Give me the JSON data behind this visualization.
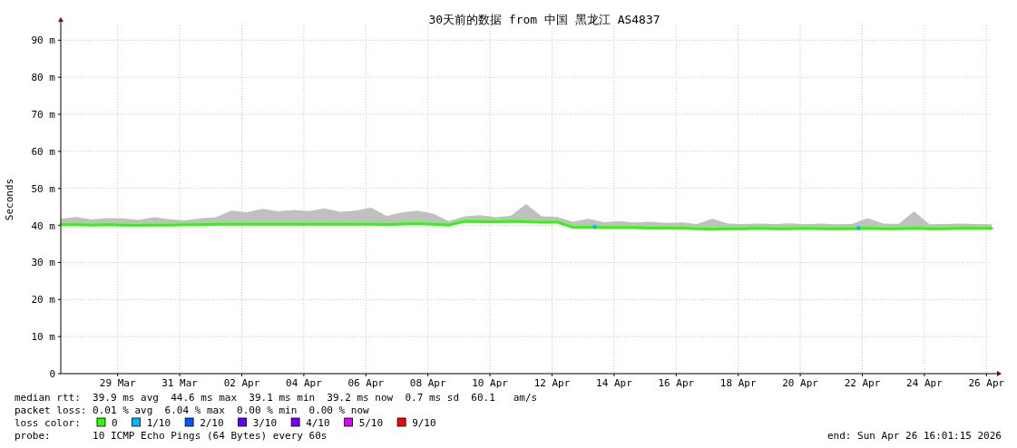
{
  "chart_data": {
    "type": "line",
    "title": "30天前的数据 from 中国 黑龙江 AS4837",
    "ylabel": "Seconds",
    "x": [
      "2026-03-27T16:00",
      "2026-03-28T04:00",
      "2026-03-28T16:00",
      "2026-03-29T04:00",
      "2026-03-29T16:00",
      "2026-03-30T04:00",
      "2026-03-30T16:00",
      "2026-03-31T04:00",
      "2026-03-31T16:00",
      "2026-04-01T04:00",
      "2026-04-01T16:00",
      "2026-04-02T04:00",
      "2026-04-02T16:00",
      "2026-04-03T04:00",
      "2026-04-03T16:00",
      "2026-04-04T04:00",
      "2026-04-04T16:00",
      "2026-04-05T04:00",
      "2026-04-05T16:00",
      "2026-04-06T04:00",
      "2026-04-06T16:00",
      "2026-04-07T04:00",
      "2026-04-07T16:00",
      "2026-04-08T04:00",
      "2026-04-08T16:00",
      "2026-04-09T04:00",
      "2026-04-09T16:00",
      "2026-04-10T04:00",
      "2026-04-10T16:00",
      "2026-04-11T04:00",
      "2026-04-11T16:00",
      "2026-04-12T04:00",
      "2026-04-12T16:00",
      "2026-04-13T04:00",
      "2026-04-13T16:00",
      "2026-04-14T04:00",
      "2026-04-14T16:00",
      "2026-04-15T04:00",
      "2026-04-15T16:00",
      "2026-04-16T04:00",
      "2026-04-16T16:00",
      "2026-04-17T04:00",
      "2026-04-17T16:00",
      "2026-04-18T04:00",
      "2026-04-18T16:00",
      "2026-04-19T04:00",
      "2026-04-19T16:00",
      "2026-04-20T04:00",
      "2026-04-20T16:00",
      "2026-04-21T04:00",
      "2026-04-21T16:00",
      "2026-04-22T04:00",
      "2026-04-22T16:00",
      "2026-04-23T04:00",
      "2026-04-23T16:00",
      "2026-04-24T04:00",
      "2026-04-24T16:00",
      "2026-04-25T04:00",
      "2026-04-25T16:00",
      "2026-04-26T04:00",
      "2026-04-26T16:00"
    ],
    "series": [
      {
        "name": "0",
        "color": "#26ff00",
        "marker": "none",
        "values": [
          40.2,
          40.2,
          40.1,
          40.2,
          40.1,
          40.0,
          40.1,
          40.1,
          40.2,
          40.2,
          40.3,
          40.3,
          40.3,
          40.3,
          40.3,
          40.3,
          40.3,
          40.3,
          40.3,
          40.3,
          40.3,
          40.2,
          40.4,
          40.5,
          40.3,
          40.1,
          41.1,
          41.0,
          41.0,
          41.1,
          41.0,
          40.9,
          40.9,
          39.5,
          39.5,
          39.4,
          39.4,
          39.4,
          39.3,
          39.3,
          39.3,
          39.1,
          39.0,
          39.1,
          39.1,
          39.2,
          39.1,
          39.1,
          39.2,
          39.1,
          39.1,
          39.1,
          39.2,
          39.1,
          39.1,
          39.2,
          39.1,
          39.1,
          39.2,
          39.2,
          39.2
        ],
        "lower": [
          39.9,
          39.9,
          39.8,
          39.9,
          39.8,
          39.7,
          39.8,
          39.8,
          39.9,
          39.9,
          40.0,
          40.0,
          40.0,
          40.0,
          40.0,
          40.0,
          40.0,
          40.0,
          40.0,
          40.0,
          40.0,
          39.9,
          40.1,
          40.2,
          40.0,
          39.8,
          40.8,
          40.7,
          40.7,
          40.8,
          40.7,
          40.6,
          40.6,
          39.2,
          39.2,
          39.1,
          39.1,
          39.1,
          39.0,
          39.0,
          39.0,
          38.8,
          38.7,
          38.8,
          38.8,
          38.9,
          38.8,
          38.8,
          38.9,
          38.8,
          38.8,
          38.8,
          38.9,
          38.8,
          38.8,
          38.9,
          38.8,
          38.8,
          38.9,
          38.9,
          38.9
        ],
        "upper": [
          41.8,
          42.3,
          41.6,
          42.0,
          41.9,
          41.5,
          42.2,
          41.7,
          41.4,
          41.9,
          42.2,
          44.0,
          43.6,
          44.5,
          43.8,
          44.2,
          43.9,
          44.6,
          43.7,
          44.0,
          44.8,
          42.6,
          43.5,
          44.0,
          43.2,
          41.2,
          42.4,
          42.8,
          42.2,
          42.6,
          45.8,
          42.5,
          42.3,
          41.0,
          41.8,
          40.9,
          41.1,
          40.8,
          41.0,
          40.7,
          40.8,
          40.4,
          41.8,
          40.5,
          40.4,
          40.5,
          40.4,
          40.6,
          40.3,
          40.5,
          40.3,
          40.4,
          42.0,
          40.5,
          40.4,
          43.8,
          40.3,
          40.4,
          40.5,
          40.4,
          40.3
        ]
      },
      {
        "name": "1/10",
        "color": "#00b8ff",
        "type": "scatter",
        "x": [
          "2026-04-13T21:00",
          "2026-04-22T09:00"
        ],
        "values": [
          39.6,
          39.3
        ]
      },
      {
        "name": "2/10",
        "color": "#0059ff",
        "type": "scatter",
        "values": [
          null,
          null,
          null,
          null,
          null,
          null,
          null,
          null,
          null,
          null,
          null,
          null,
          null,
          null,
          null,
          null,
          null,
          null,
          null,
          null,
          null,
          null,
          null,
          null,
          null,
          null,
          null,
          null,
          null,
          null,
          null,
          null,
          null,
          null,
          null,
          null,
          null,
          null,
          null,
          null,
          null,
          null,
          null,
          null,
          null,
          null,
          null,
          null,
          null,
          null,
          null,
          null,
          null,
          null,
          null,
          null,
          null,
          null,
          null,
          null,
          null
        ]
      },
      {
        "name": "3/10",
        "color": "#5e00ff",
        "type": "scatter",
        "values": [
          null,
          null,
          null,
          null,
          null,
          null,
          null,
          null,
          null,
          null,
          null,
          null,
          null,
          null,
          null,
          null,
          null,
          null,
          null,
          null,
          null,
          null,
          null,
          null,
          null,
          null,
          null,
          null,
          null,
          null,
          null,
          null,
          null,
          null,
          null,
          null,
          null,
          null,
          null,
          null,
          null,
          null,
          null,
          null,
          null,
          null,
          null,
          null,
          null,
          null,
          null,
          null,
          null,
          null,
          null,
          null,
          null,
          null,
          null,
          null,
          null
        ]
      },
      {
        "name": "4/10",
        "color": "#7e00ff",
        "type": "scatter",
        "values": [
          null,
          null,
          null,
          null,
          null,
          null,
          null,
          null,
          null,
          null,
          null,
          null,
          null,
          null,
          null,
          null,
          null,
          null,
          null,
          null,
          null,
          null,
          null,
          null,
          null,
          null,
          null,
          null,
          null,
          null,
          null,
          null,
          null,
          null,
          null,
          null,
          null,
          null,
          null,
          null,
          null,
          null,
          null,
          null,
          null,
          null,
          null,
          null,
          null,
          null,
          null,
          null,
          null,
          null,
          null,
          null,
          null,
          null,
          null,
          null,
          null
        ]
      },
      {
        "name": "5/10",
        "color": "#dd00ff",
        "type": "scatter",
        "values": [
          null,
          null,
          null,
          null,
          null,
          null,
          null,
          null,
          null,
          null,
          null,
          null,
          null,
          null,
          null,
          null,
          null,
          null,
          null,
          null,
          null,
          null,
          null,
          null,
          null,
          null,
          null,
          null,
          null,
          null,
          null,
          null,
          null,
          null,
          null,
          null,
          null,
          null,
          null,
          null,
          null,
          null,
          null,
          null,
          null,
          null,
          null,
          null,
          null,
          null,
          null,
          null,
          null,
          null,
          null,
          null,
          null,
          null,
          null,
          null,
          null
        ]
      },
      {
        "name": "9/10",
        "color": "#ff0000",
        "type": "scatter",
        "values": [
          null,
          null,
          null,
          null,
          null,
          null,
          null,
          null,
          null,
          null,
          null,
          null,
          null,
          null,
          null,
          null,
          null,
          null,
          null,
          null,
          null,
          null,
          null,
          null,
          null,
          null,
          null,
          null,
          null,
          null,
          null,
          null,
          null,
          null,
          null,
          null,
          null,
          null,
          null,
          null,
          null,
          null,
          null,
          null,
          null,
          null,
          null,
          null,
          null,
          null,
          null,
          null,
          null,
          null,
          null,
          null,
          null,
          null,
          null,
          null,
          null
        ]
      }
    ],
    "xlim": [
      "2026-03-27T16:00",
      "2026-04-26T16:00"
    ],
    "xticks": [
      {
        "value": "2026-03-29T12:00",
        "label": "29 Mar"
      },
      {
        "value": "2026-03-31T12:00",
        "label": "31 Mar"
      },
      {
        "value": "2026-04-02T12:00",
        "label": "02 Apr"
      },
      {
        "value": "2026-04-04T12:00",
        "label": "04 Apr"
      },
      {
        "value": "2026-04-06T12:00",
        "label": "06 Apr"
      },
      {
        "value": "2026-04-08T12:00",
        "label": "08 Apr"
      },
      {
        "value": "2026-04-10T12:00",
        "label": "10 Apr"
      },
      {
        "value": "2026-04-12T12:00",
        "label": "12 Apr"
      },
      {
        "value": "2026-04-14T12:00",
        "label": "14 Apr"
      },
      {
        "value": "2026-04-16T12:00",
        "label": "16 Apr"
      },
      {
        "value": "2026-04-18T12:00",
        "label": "18 Apr"
      },
      {
        "value": "2026-04-20T12:00",
        "label": "20 Apr"
      },
      {
        "value": "2026-04-22T12:00",
        "label": "22 Apr"
      },
      {
        "value": "2026-04-24T12:00",
        "label": "24 Apr"
      },
      {
        "value": "2026-04-26T12:00",
        "label": "26 Apr"
      }
    ],
    "ylim": [
      0,
      94
    ],
    "yticks": [
      0,
      {
        "value": 10,
        "label": "10 m"
      },
      {
        "value": 20,
        "label": "20 m"
      },
      {
        "value": 30,
        "label": "30 m"
      },
      {
        "value": 40,
        "label": "40 m"
      },
      {
        "value": 50,
        "label": "50 m"
      },
      {
        "value": 60,
        "label": "60 m"
      },
      {
        "value": 70,
        "label": "70 m"
      },
      {
        "value": 80,
        "label": "80 m"
      },
      {
        "value": 90,
        "label": "90 m"
      }
    ],
    "grid": true,
    "legend": "bottom",
    "legend_title": "loss color:",
    "marker": "square",
    "line_style": "solid",
    "annotations": [
      "median rtt:  39.9 ms avg  44.6 ms max  39.1 ms min  39.2 ms now  0.7 ms sd  60.1   am/s",
      "packet loss: 0.01 % avg  6.04 % max  0.00 % min  0.00 % now",
      "probe:       10 ICMP Echo Pings (64 Bytes) every 60s",
      "end: Sun Apr 26 16:01:15 2026"
    ]
  }
}
